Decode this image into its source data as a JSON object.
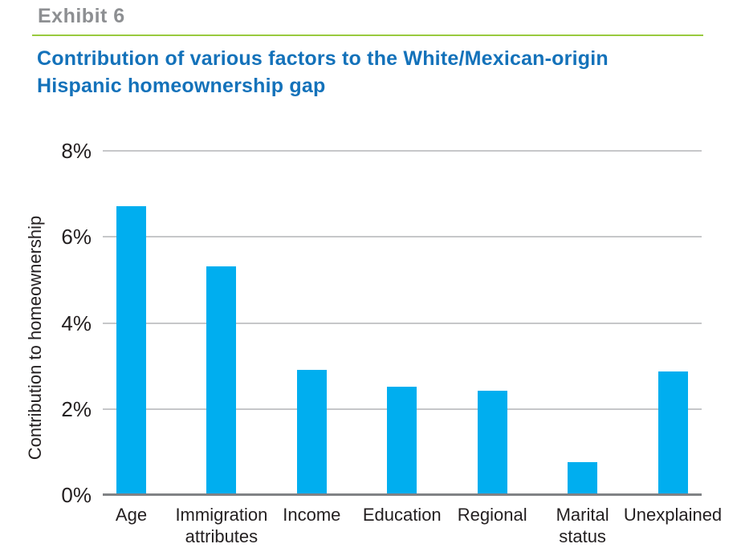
{
  "header": {
    "exhibit_label": "Exhibit 6",
    "title_line1": "Contribution of various factors to the White/Mexican-origin",
    "title_line2": "Hispanic homeownership gap"
  },
  "colors": {
    "bar": "#00aeef",
    "title_blue": "#1472ba",
    "exhibit_gray": "#8d8f92",
    "divider_green": "#99ca3e",
    "gridline": "#c6c7c9",
    "axis_line": "#808285",
    "text": "#231f20"
  },
  "chart_data": {
    "type": "bar",
    "title": "Contribution of various factors to the White/Mexican-origin Hispanic homeownership gap",
    "categories": [
      "Age",
      "Immigration attributes",
      "Income",
      "Education",
      "Regional",
      "Marital status",
      "Unexplained"
    ],
    "category_display": [
      "Age",
      "Immigration\nattributes",
      "Income",
      "Education",
      "Regional",
      "Marital\nstatus",
      "Unexplained"
    ],
    "values": [
      6.7,
      5.3,
      2.9,
      2.5,
      2.4,
      0.75,
      2.85
    ],
    "unit": "%",
    "xlabel": "",
    "ylabel": "Contribution to homeownership",
    "ylim": [
      0,
      8
    ],
    "yticks": [
      0,
      2,
      4,
      6,
      8
    ],
    "ytick_labels": [
      "0%",
      "2%",
      "4%",
      "6%",
      "8%"
    ],
    "grid": true,
    "legend": "none",
    "bar_color": "#00aeef"
  }
}
